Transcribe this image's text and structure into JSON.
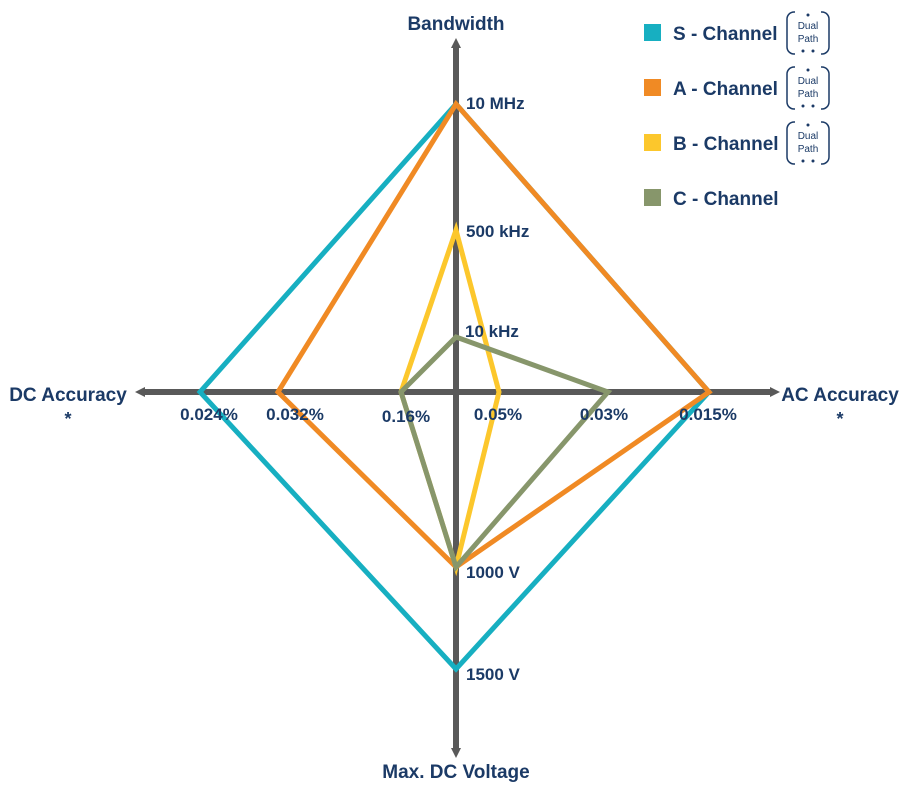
{
  "chart_data": {
    "type": "radar",
    "axes": [
      {
        "key": "bandwidth",
        "label": "Bandwidth",
        "direction": "up"
      },
      {
        "key": "ac_accuracy",
        "label": "AC Accuracy",
        "note": "*",
        "direction": "right"
      },
      {
        "key": "max_dc_voltage",
        "label": "Max. DC Voltage",
        "direction": "down"
      },
      {
        "key": "dc_accuracy",
        "label": "DC Accuracy",
        "note": "*",
        "direction": "left"
      }
    ],
    "tick_labels": {
      "bandwidth": [
        "10 kHz",
        "500 kHz",
        "10 MHz"
      ],
      "ac_accuracy": [
        "0.05%",
        "0.03%",
        "0.015%"
      ],
      "max_dc_voltage": [
        "1000 V",
        "1500 V"
      ],
      "dc_accuracy": [
        "0.16%",
        "0.032%",
        "0.024%"
      ]
    },
    "series": [
      {
        "name": "S - Channel",
        "color": "#17afc1",
        "dual_path": true,
        "values": {
          "bandwidth": "10 MHz",
          "ac_accuracy": "0.015%",
          "max_dc_voltage": "1500 V",
          "dc_accuracy": "0.024%"
        }
      },
      {
        "name": "A - Channel",
        "color": "#f08a24",
        "dual_path": true,
        "values": {
          "bandwidth": "10 MHz",
          "ac_accuracy": "0.015%",
          "max_dc_voltage": "1000 V",
          "dc_accuracy": "0.032%"
        }
      },
      {
        "name": "B - Channel",
        "color": "#fcc72c",
        "dual_path": true,
        "values": {
          "bandwidth": "500 kHz",
          "ac_accuracy": "0.05%",
          "max_dc_voltage": "1000 V",
          "dc_accuracy": "0.16%"
        }
      },
      {
        "name": "C - Channel",
        "color": "#87966b",
        "dual_path": false,
        "values": {
          "bandwidth": "10 kHz",
          "ac_accuracy": "0.03%",
          "max_dc_voltage": "1000 V",
          "dc_accuracy": "0.16%"
        }
      }
    ],
    "highlight_tick": {
      "label": "1500 V",
      "color": "#b2142a"
    },
    "badge_text": [
      "Dual",
      "Path"
    ],
    "legend_position": "top-right"
  }
}
